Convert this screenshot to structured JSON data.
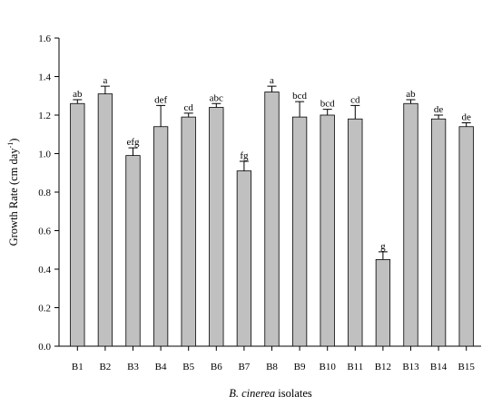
{
  "chart_data": {
    "type": "bar",
    "title": "",
    "xlabel_italic": "B. cinerea",
    "xlabel_rest": " isolates",
    "ylabel_main": "Growth Rate (cm day",
    "ylabel_sup": "-1",
    "ylabel_close": ")",
    "ylim": [
      0,
      1.6
    ],
    "yticks": [
      "0.0",
      "0.2",
      "0.4",
      "0.6",
      "0.8",
      "1.0",
      "1.2",
      "1.4",
      "1.6"
    ],
    "grid": false,
    "legend": "none",
    "bar_color": "#c0c0c0",
    "categories": [
      "B1",
      "B2",
      "B3",
      "B4",
      "B5",
      "B6",
      "B7",
      "B8",
      "B9",
      "B10",
      "B11",
      "B12",
      "B13",
      "B14",
      "B15"
    ],
    "values": [
      1.26,
      1.31,
      0.99,
      1.14,
      1.19,
      1.24,
      0.91,
      1.32,
      1.19,
      1.2,
      1.18,
      0.45,
      1.26,
      1.18,
      1.14
    ],
    "error_upper": [
      0.02,
      0.04,
      0.04,
      0.11,
      0.02,
      0.02,
      0.05,
      0.03,
      0.08,
      0.03,
      0.07,
      0.04,
      0.02,
      0.02,
      0.02
    ],
    "significance_labels": [
      "ab",
      "a",
      "efg",
      "def",
      "cd",
      "abc",
      "fg",
      "a",
      "bcd",
      "bcd",
      "cd",
      "g",
      "ab",
      "de",
      "de"
    ]
  }
}
